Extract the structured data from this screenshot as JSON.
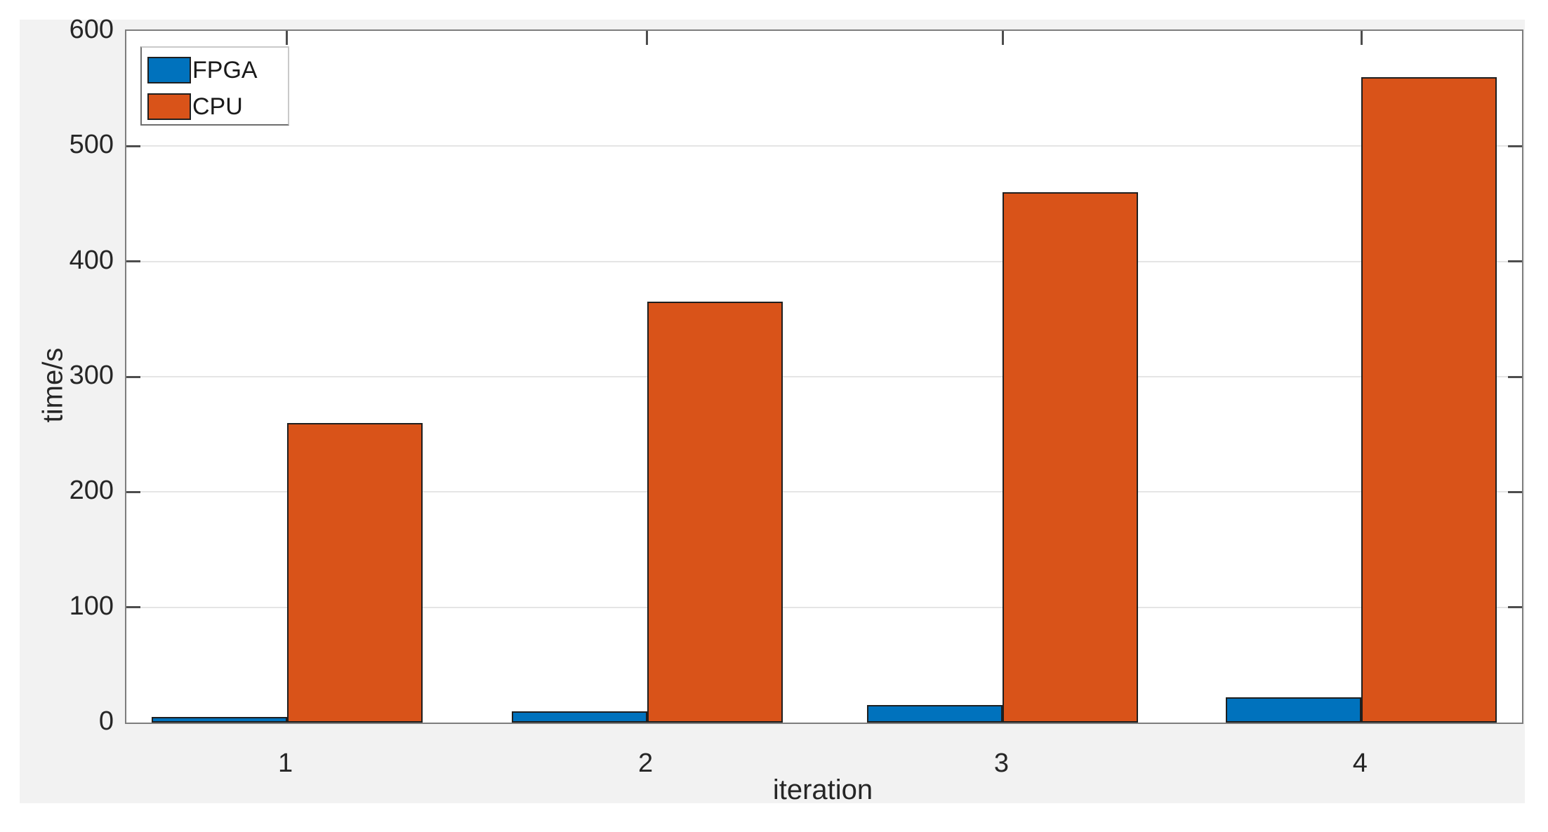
{
  "figure": {
    "background_color": "#f2f2f2",
    "plot_background_color": "#ffffff",
    "axis_color": "#7d7d7d",
    "tick_color": "#4d4d4d",
    "grid_color": "#e5e5e5",
    "text_color": "#262626"
  },
  "legend": {
    "position": "top-left",
    "entries": [
      {
        "label": "FPGA",
        "color": "#0072BD"
      },
      {
        "label": "CPU",
        "color": "#D95319"
      }
    ]
  },
  "chart_data": {
    "type": "bar",
    "title": "",
    "categories": [
      "1",
      "2",
      "3",
      "4"
    ],
    "series": [
      {
        "name": "FPGA",
        "color": "#0072BD",
        "values": [
          5,
          10,
          15,
          22
        ]
      },
      {
        "name": "CPU",
        "color": "#D95319",
        "values": [
          260,
          365,
          460,
          560
        ]
      }
    ],
    "xlabel": "iteration",
    "ylabel": "time/s",
    "ylim": [
      0,
      600
    ],
    "yticks": [
      0,
      100,
      200,
      300,
      400,
      500,
      600
    ],
    "grid": "horizontal",
    "legend_position": "top-left"
  }
}
